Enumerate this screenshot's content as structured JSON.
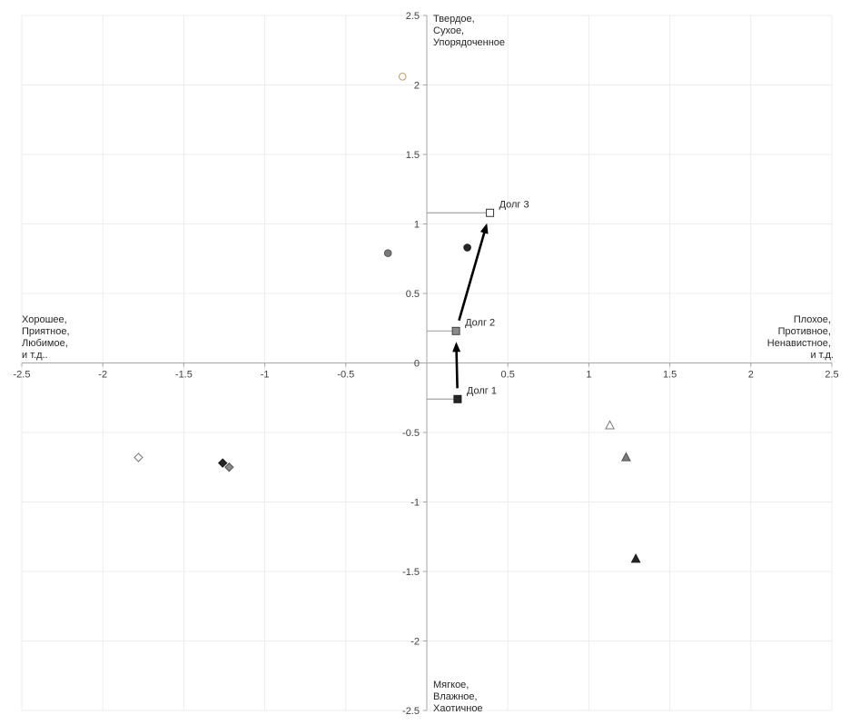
{
  "chart_data": {
    "type": "scatter",
    "xlim": [
      -2.5,
      2.5
    ],
    "ylim": [
      -2.5,
      2.5
    ],
    "axes_cross_at": [
      0,
      0
    ],
    "x_ticks": [
      "-2.5",
      "-2",
      "-1.5",
      "-1",
      "-0.5",
      "0.5",
      "1",
      "1.5",
      "2",
      "2.5"
    ],
    "y_ticks": [
      "2.5",
      "2",
      "1.5",
      "1",
      "0.5",
      "0",
      "-0.5",
      "-1",
      "-1.5",
      "-2",
      "-2.5"
    ],
    "grid": true,
    "legend": "none",
    "quadrant_labels": {
      "top": [
        "Твердое,",
        "Сухое,",
        "Упорядоченное"
      ],
      "bottom": [
        "Мягкое,",
        "Влажное,",
        "Хаотичное"
      ],
      "left": [
        "Хорошее,",
        "Приятное,",
        "Любимое,",
        "и т.д.."
      ],
      "right": [
        "Плохое,",
        "Противное,",
        "Ненавистное,",
        "и т.д."
      ]
    },
    "points": [
      {
        "x": -0.15,
        "y": 2.06,
        "marker": "circle",
        "fill": "#ffffff",
        "stroke": "#c99a66"
      },
      {
        "x": -0.24,
        "y": 0.79,
        "marker": "circle",
        "fill": "#7a7a7a",
        "stroke": "#505050"
      },
      {
        "x": 0.25,
        "y": 0.83,
        "marker": "circle",
        "fill": "#262626",
        "stroke": "#1a1a1a"
      },
      {
        "x": 0.19,
        "y": -0.26,
        "marker": "square",
        "fill": "#262626",
        "stroke": "#1a1a1a",
        "label": "Долг 1",
        "leader_to_y_axis": true
      },
      {
        "x": 0.18,
        "y": 0.23,
        "marker": "square",
        "fill": "#8a8a8a",
        "stroke": "#404040",
        "label": "Долг 2",
        "leader_to_y_axis": true
      },
      {
        "x": 0.39,
        "y": 1.08,
        "marker": "square",
        "fill": "#ffffff",
        "stroke": "#333333",
        "label": "Долг 3",
        "leader_to_y_axis": true
      },
      {
        "x": -1.78,
        "y": -0.68,
        "marker": "diamond",
        "fill": "#ffffff",
        "stroke": "#777777"
      },
      {
        "x": -1.26,
        "y": -0.72,
        "marker": "diamond",
        "fill": "#262626",
        "stroke": "#1a1a1a"
      },
      {
        "x": -1.22,
        "y": -0.75,
        "marker": "diamond",
        "fill": "#8a8a8a",
        "stroke": "#505050"
      },
      {
        "x": 1.13,
        "y": -0.45,
        "marker": "triangle",
        "fill": "#ffffff",
        "stroke": "#777777"
      },
      {
        "x": 1.23,
        "y": -0.68,
        "marker": "triangle",
        "fill": "#7a7a7a",
        "stroke": "#505050"
      },
      {
        "x": 1.29,
        "y": -1.41,
        "marker": "triangle",
        "fill": "#262626",
        "stroke": "#1a1a1a"
      }
    ],
    "arrows": [
      {
        "from": 3,
        "to": 4
      },
      {
        "from": 4,
        "to": 5
      }
    ]
  }
}
